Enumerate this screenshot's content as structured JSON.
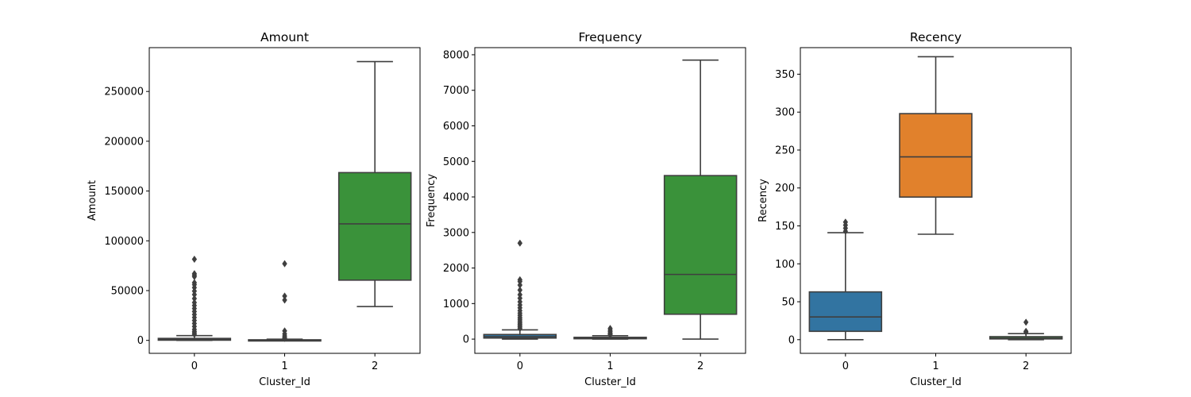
{
  "chart_data": [
    {
      "type": "box",
      "title": "Amount",
      "xlabel": "Cluster_Id",
      "ylabel": "Amount",
      "categories": [
        "0",
        "1",
        "2"
      ],
      "ylim": [
        -13000,
        294000
      ],
      "yticks": [
        0,
        50000,
        100000,
        150000,
        200000,
        250000
      ],
      "ytick_labels": [
        "0",
        "50000",
        "100000",
        "150000",
        "200000",
        "250000"
      ],
      "colors": [
        "#3274a1",
        "#e1812c",
        "#3a923a"
      ],
      "boxes": [
        {
          "category": "0",
          "whisker_low": 0,
          "q1": 200,
          "median": 800,
          "q3": 2000,
          "whisker_high": 4800,
          "outliers": [
            81500,
            67000,
            65500,
            64000,
            58000,
            56000,
            53000,
            49500,
            46000,
            42000,
            38000,
            35000,
            32000,
            29000,
            26000,
            23000,
            20000,
            17000,
            14000,
            11000,
            9000,
            7500,
            6000
          ]
        },
        {
          "category": "1",
          "whisker_low": 0,
          "q1": 100,
          "median": 300,
          "q3": 600,
          "whisker_high": 1200,
          "outliers": [
            77000,
            44500,
            40500,
            9500,
            6500,
            4500,
            3000,
            2000
          ]
        },
        {
          "category": "2",
          "whisker_low": 34000,
          "q1": 60500,
          "median": 117000,
          "q3": 168500,
          "whisker_high": 280000,
          "outliers": []
        }
      ]
    },
    {
      "type": "box",
      "title": "Frequency",
      "xlabel": "Cluster_Id",
      "ylabel": "Frequency",
      "categories": [
        "0",
        "1",
        "2"
      ],
      "ylim": [
        -400,
        8200
      ],
      "yticks": [
        0,
        1000,
        2000,
        3000,
        4000,
        5000,
        6000,
        7000,
        8000
      ],
      "ytick_labels": [
        "0",
        "1000",
        "2000",
        "3000",
        "4000",
        "5000",
        "6000",
        "7000",
        "8000"
      ],
      "colors": [
        "#3274a1",
        "#e1812c",
        "#3a923a"
      ],
      "boxes": [
        {
          "category": "0",
          "whisker_low": 0,
          "q1": 30,
          "median": 70,
          "q3": 130,
          "whisker_high": 260,
          "outliers": [
            2700,
            1670,
            1620,
            1520,
            1380,
            1250,
            1150,
            1050,
            960,
            880,
            800,
            730,
            670,
            610,
            560,
            510,
            460,
            420,
            380,
            340,
            300
          ]
        },
        {
          "category": "1",
          "whisker_low": 0,
          "q1": 10,
          "median": 25,
          "q3": 50,
          "whisker_high": 95,
          "outliers": [
            300,
            250,
            210,
            170,
            140,
            115
          ]
        },
        {
          "category": "2",
          "whisker_low": 0,
          "q1": 700,
          "median": 1820,
          "q3": 4600,
          "whisker_high": 7850,
          "outliers": []
        }
      ]
    },
    {
      "type": "box",
      "title": "Recency",
      "xlabel": "Cluster_Id",
      "ylabel": "Recency",
      "categories": [
        "0",
        "1",
        "2"
      ],
      "ylim": [
        -18,
        385
      ],
      "yticks": [
        0,
        50,
        100,
        150,
        200,
        250,
        300,
        350
      ],
      "ytick_labels": [
        "0",
        "50",
        "100",
        "150",
        "200",
        "250",
        "300",
        "350"
      ],
      "colors": [
        "#3274a1",
        "#e1812c",
        "#3a923a"
      ],
      "boxes": [
        {
          "category": "0",
          "whisker_low": 0,
          "q1": 11,
          "median": 30,
          "q3": 63,
          "whisker_high": 141,
          "outliers": [
            155,
            151,
            147,
            143
          ]
        },
        {
          "category": "1",
          "whisker_low": 139,
          "q1": 188,
          "median": 241,
          "q3": 298,
          "whisker_high": 373,
          "outliers": []
        },
        {
          "category": "2",
          "whisker_low": 0,
          "q1": 1,
          "median": 2,
          "q3": 4,
          "whisker_high": 8,
          "outliers": [
            23,
            11,
            10
          ]
        }
      ]
    }
  ]
}
